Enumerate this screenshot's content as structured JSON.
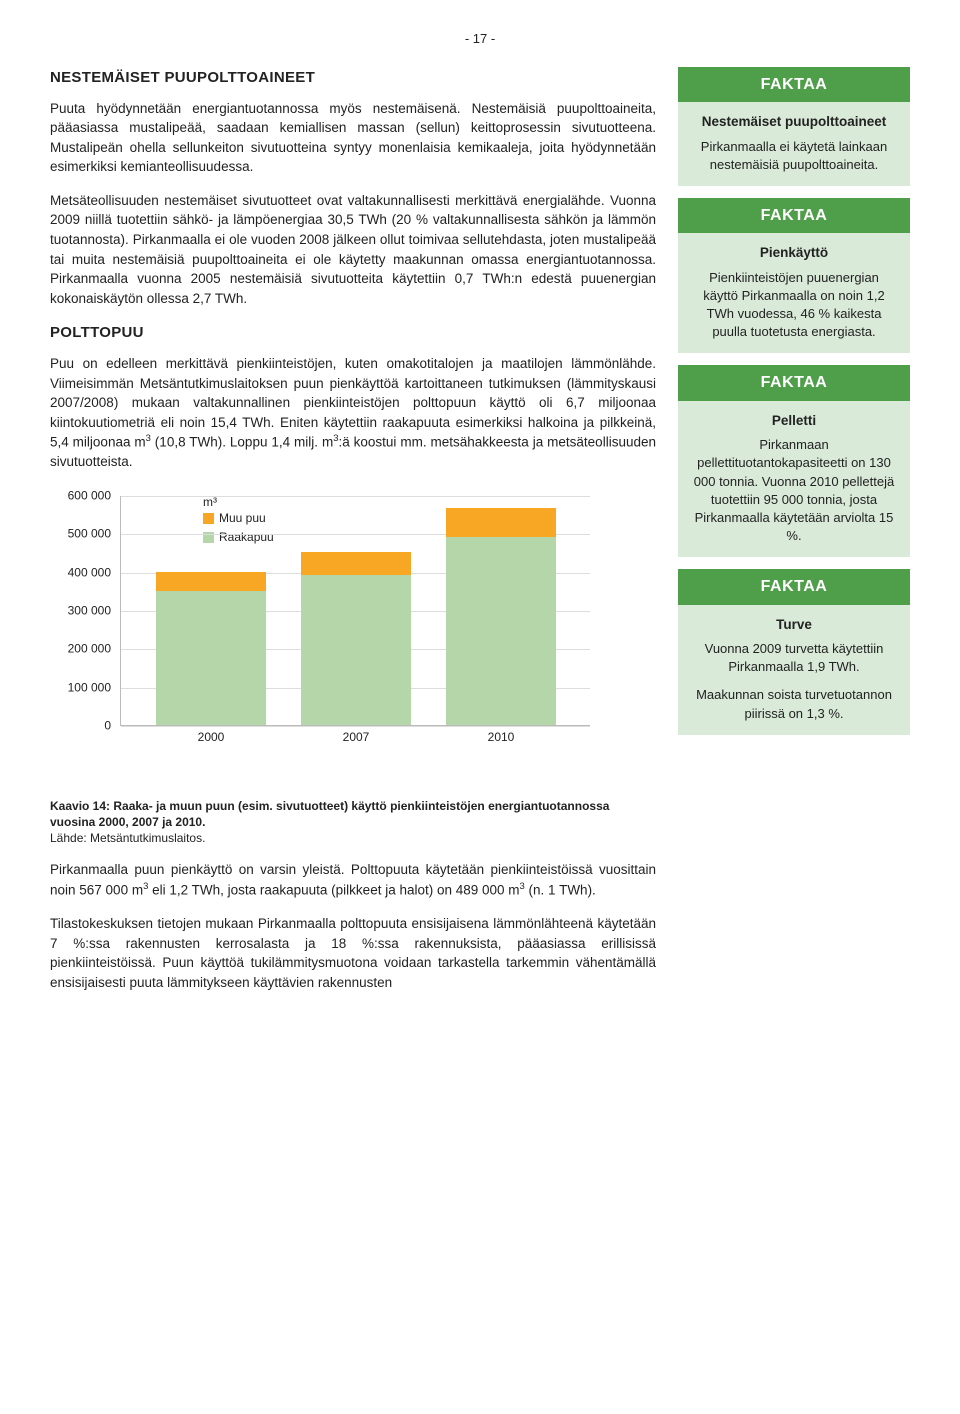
{
  "page_number": "- 17 -",
  "main": {
    "heading1": "NESTEMÄISET PUUPOLTTOAINEET",
    "p1": "Puuta hyödynnetään energiantuotannossa myös nestemäisenä. Nestemäisiä puupolttoaineita, pääasiassa mustalipeää, saadaan kemiallisen massan (sellun) keittoprosessin sivutuotteena. Mustalipeän ohella sellunkeiton sivutuotteina syntyy monenlaisia kemikaaleja, joita hyödynnetään esimerkiksi kemianteollisuudessa.",
    "p2": "Metsäteollisuuden nestemäiset sivutuotteet ovat valtakunnallisesti merkittävä energialähde. Vuonna 2009 niillä tuotettiin sähkö- ja lämpöenergiaa 30,5 TWh (20 % valtakunnallisesta sähkön ja lämmön tuotannosta). Pirkanmaalla ei ole vuoden 2008 jälkeen ollut toimivaa sellutehdasta, joten mustalipeää tai muita nestemäisiä puupolttoaineita ei ole käytetty maakunnan omassa energiantuotannossa. Pirkanmaalla vuonna 2005 nestemäisiä sivutuotteita käytettiin 0,7 TWh:n edestä puuenergian kokonaiskäytön ollessa 2,7 TWh.",
    "heading2": "POLTTOPUU",
    "p3_a": "Puu on edelleen merkittävä pienkiinteistöjen, kuten omakotitalojen ja maatilojen lämmönlähde. Viimeisimmän Metsäntutkimuslaitoksen puun pienkäyttöä kartoittaneen tutkimuksen (lämmityskausi 2007/2008) mukaan valtakunnallinen pienkiinteistöjen polttopuun käyttö oli 6,7 miljoonaa kiintokuutiometriä eli noin 15,4 TWh. Eniten käytettiin raakapuuta esimerkiksi halkoina ja pilkkeinä, 5,4 miljoonaa m",
    "p3_b": " (10,8 TWh). Loppu 1,4 milj. m",
    "p3_c": ":ä koostui mm. metsähakkeesta ja metsäteollisuuden sivutuotteista.",
    "caption_a": "Kaavio 14: Raaka- ja muun puun (esim. sivutuotteet) käyttö pienkiinteistöjen energiantuotannossa vuosina 2000, 2007 ja 2010.",
    "caption_src": "Lähde: Metsäntutkimuslaitos.",
    "p4_a": "Pirkanmaalla puun pienkäyttö on varsin yleistä. Polttopuuta käytetään pienkiinteistöissä vuosittain noin 567 000 m",
    "p4_b": " eli 1,2 TWh, josta raakapuuta (pilkkeet ja halot) on 489 000 m",
    "p4_c": " (n. 1 TWh).",
    "p5": "Tilastokeskuksen tietojen mukaan Pirkanmaalla polttopuuta ensisijaisena lämmönlähteenä käytetään 7 %:ssa rakennusten kerrosalasta ja 18 %:ssa rakennuksista, pääasiassa erillisissä pienkiinteistöissä. Puun käyttöä tukilämmitysmuotona voidaan tarkastella tarkemmin vähentämällä ensisijaisesti puuta lämmitykseen käyttävien rakennusten"
  },
  "chart": {
    "unit_label": "m³",
    "legend1": "Muu puu",
    "legend2": "Raakapuu",
    "color_muu": "#f7a723",
    "color_raaka": "#b5d6a9",
    "grid_color": "#dddddd",
    "axis_color": "#bbbbbb",
    "y_ticks": [
      "0",
      "100 000",
      "200 000",
      "300 000",
      "400 000",
      "500 000",
      "600 000"
    ],
    "ymax": 600000,
    "bars": [
      {
        "x": "2000",
        "raaka": 350000,
        "muu": 50000
      },
      {
        "x": "2007",
        "raaka": 390000,
        "muu": 60000
      },
      {
        "x": "2010",
        "raaka": 489000,
        "muu": 78000
      }
    ]
  },
  "side": {
    "box1": {
      "header": "FAKTAA",
      "sub": "Nestemäiset puupolttoaineet",
      "body": "Pirkanmaalla ei käytetä lainkaan nestemäisiä puupolttoaineita."
    },
    "box2": {
      "header": "FAKTAA",
      "sub": "Pienkäyttö",
      "body": "Pienkiinteistöjen puuenergian käyttö Pirkanmaalla on noin 1,2 TWh vuodessa, 46 % kaikesta puulla tuotetusta energiasta."
    },
    "box3": {
      "header": "FAKTAA",
      "sub": "Pelletti",
      "body": "Pirkanmaan pellettituotantokapasiteetti on 130 000 tonnia. Vuonna 2010 pellettejä tuotettiin 95 000 tonnia, josta Pirkanmaalla käytetään arviolta 15 %."
    },
    "box4": {
      "header": "FAKTAA",
      "sub": "Turve",
      "body1": "Vuonna 2009 turvetta käytettiin Pirkanmaalla 1,9 TWh.",
      "body2": "Maakunnan soista turvetuotannon piirissä on 1,3 %."
    }
  }
}
